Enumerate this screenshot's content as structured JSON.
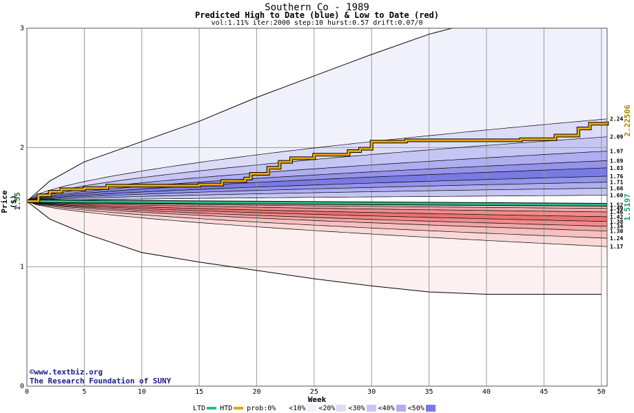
{
  "chart_data": {
    "type": "area",
    "title": "Southern Co - 1989",
    "subtitle": "Predicted High to Date (blue) &  Low to Date (red)",
    "params": "vol:1.11% iter:2000 step:10 hurst:0.57 drift:0.07/0",
    "xlabel": "Week",
    "ylabel": "Price ($)",
    "xlim": [
      0,
      50.5
    ],
    "ylim": [
      0,
      3
    ],
    "x_ticks": [
      "0",
      "5",
      "10",
      "15",
      "20",
      "25",
      "30",
      "35",
      "40",
      "45",
      "50"
    ],
    "y_ticks": [
      "0",
      "1",
      "2",
      "3"
    ],
    "grid": true,
    "start_price": "1.55",
    "start_price_value": 1.55,
    "ltd_label": "1.5197",
    "ltd_value": 1.5197,
    "htd_label": "2.22506",
    "high_quantile_end_labels": [
      "2.24",
      "2.09",
      "1.97",
      "1.89",
      "1.83",
      "1.76",
      "1.71",
      "1.66",
      "1.60"
    ],
    "high_quantile_end_values": [
      2.24,
      2.09,
      1.97,
      1.89,
      1.83,
      1.76,
      1.71,
      1.66,
      1.6
    ],
    "low_quantile_end_labels": [
      "1.52",
      "1.49",
      "1.46",
      "1.42",
      "1.38",
      "1.34",
      "1.30",
      "1.24",
      "1.17"
    ],
    "low_quantile_end_values": [
      1.52,
      1.49,
      1.46,
      1.42,
      1.38,
      1.34,
      1.3,
      1.24,
      1.17
    ],
    "high_max_values": [
      [
        0,
        1.55
      ],
      [
        2,
        1.72
      ],
      [
        5,
        1.88
      ],
      [
        10,
        2.05
      ],
      [
        15,
        2.22
      ],
      [
        20,
        2.42
      ],
      [
        25,
        2.6
      ],
      [
        30,
        2.78
      ],
      [
        35,
        2.95
      ],
      [
        37,
        3.0
      ]
    ],
    "low_min_values": [
      [
        0,
        1.55
      ],
      [
        2,
        1.4
      ],
      [
        5,
        1.28
      ],
      [
        10,
        1.12
      ],
      [
        15,
        1.04
      ],
      [
        20,
        0.97
      ],
      [
        25,
        0.9
      ],
      [
        30,
        0.84
      ],
      [
        35,
        0.79
      ],
      [
        40,
        0.77
      ],
      [
        50,
        0.77
      ]
    ],
    "htd_series": [
      [
        0,
        1.55
      ],
      [
        1,
        1.6
      ],
      [
        2,
        1.63
      ],
      [
        3,
        1.65
      ],
      [
        5,
        1.66
      ],
      [
        7,
        1.68
      ],
      [
        15,
        1.69
      ],
      [
        17,
        1.72
      ],
      [
        19,
        1.74
      ],
      [
        19.5,
        1.78
      ],
      [
        21,
        1.83
      ],
      [
        22,
        1.88
      ],
      [
        23,
        1.91
      ],
      [
        25,
        1.94
      ],
      [
        28,
        1.97
      ],
      [
        29,
        1.99
      ],
      [
        30,
        2.05
      ],
      [
        33,
        2.06
      ],
      [
        40,
        2.06
      ],
      [
        43,
        2.07
      ],
      [
        46,
        2.1
      ],
      [
        48,
        2.16
      ],
      [
        49,
        2.2
      ],
      [
        50.5,
        2.22
      ]
    ],
    "ltd_series": [
      [
        0,
        1.55
      ],
      [
        50.5,
        1.52
      ]
    ]
  },
  "credit": {
    "line1": "©www.textbiz.org",
    "line2": "The Research Foundation of SUNY"
  },
  "legend": {
    "ltd": "LTD",
    "htd": "HTD",
    "prob": "prob:0%",
    "b10": "<10%",
    "b20": "<20%",
    "b30": "<30%",
    "b40": "<40%",
    "b50": "<50%"
  },
  "colors": {
    "ltd": "#22c08a",
    "htd": "#e8a800",
    "high_text": "#b08000",
    "low_text": "#1a9a70",
    "blue_bands": [
      "#f1f1fc",
      "#dcdcf8",
      "#c6c6f4",
      "#aeaef0",
      "#9494ea",
      "#7a7ae4"
    ],
    "red_bands": [
      "#fdf0f0",
      "#fad8d8",
      "#f6c0c0",
      "#f2a6a6",
      "#ee8c8c",
      "#ea7272"
    ]
  }
}
